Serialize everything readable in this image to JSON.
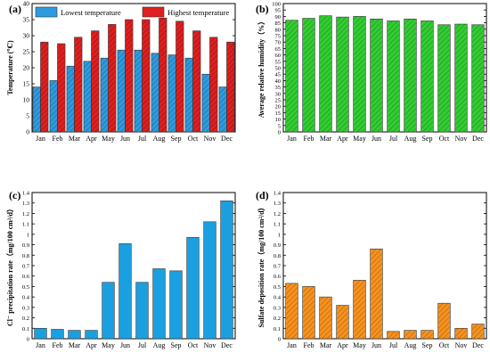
{
  "chart_data": [
    {
      "type": "bar",
      "panel": "(a)",
      "ylabel": "Temperature (℃)",
      "categories": [
        "Jan",
        "Feb",
        "Mar",
        "Apr",
        "May",
        "Jun",
        "Jul",
        "Aug",
        "Sep",
        "Oct",
        "Nov",
        "Dec"
      ],
      "series": [
        {
          "name": "Lowest temperature",
          "values": [
            14,
            16,
            20.5,
            22,
            23,
            25.5,
            25.5,
            24.5,
            24,
            23,
            18,
            14
          ],
          "color": "#2e9be0"
        },
        {
          "name": "Highest temperature",
          "values": [
            28,
            27.5,
            29.5,
            31.5,
            33.5,
            35,
            35,
            35.5,
            34.5,
            31.5,
            29.5,
            28
          ],
          "color": "#e01f1f"
        }
      ],
      "ylim": [
        0,
        40
      ],
      "yticks": [
        0,
        5,
        10,
        15,
        20,
        25,
        30,
        35,
        40
      ],
      "legend": "top-left",
      "hatched": true
    },
    {
      "type": "bar",
      "panel": "(b)",
      "ylabel": "Average relative humidity（%）",
      "categories": [
        "Jan",
        "Feb",
        "Mar",
        "Apr",
        "May",
        "Jun",
        "Jul",
        "Aug",
        "Sep",
        "Oct",
        "Nov",
        "Dec"
      ],
      "series": [
        {
          "values": [
            87,
            88.5,
            90.5,
            89.5,
            90,
            88,
            86.5,
            88,
            86.5,
            83.5,
            84,
            83.5
          ],
          "color": "#33cc33"
        }
      ],
      "ylim": [
        0,
        100
      ],
      "yticks": [
        0,
        5,
        10,
        15,
        20,
        25,
        30,
        35,
        40,
        45,
        50,
        55,
        60,
        65,
        70,
        75,
        80,
        85,
        90,
        95,
        100
      ],
      "hatched": true
    },
    {
      "type": "bar",
      "panel": "(c)",
      "ylabel": "Cl⁻ precipitation rate（mg/100 cm²/d）",
      "categories": [
        "Jan",
        "Feb",
        "Mar",
        "Apr",
        "May",
        "Jun",
        "Jul",
        "Aug",
        "Sep",
        "Oct",
        "Nov",
        "Dec"
      ],
      "series": [
        {
          "values": [
            0.1,
            0.09,
            0.08,
            0.08,
            0.54,
            0.91,
            0.54,
            0.67,
            0.65,
            0.97,
            1.12,
            1.32
          ],
          "color": "#1aa0e0"
        }
      ],
      "ylim": [
        0,
        1.4
      ],
      "yticks": [
        0,
        0.1,
        0.2,
        0.3,
        0.4,
        0.5,
        0.6,
        0.7,
        0.8,
        0.9,
        1.0,
        1.1,
        1.2,
        1.3,
        1.4
      ],
      "hatched": false
    },
    {
      "type": "bar",
      "panel": "(d)",
      "ylabel": "Sulfate deposition rate（mg/100 cm²/d）",
      "categories": [
        "Jan",
        "Feb",
        "Mar",
        "Apr",
        "May",
        "Jun",
        "Jul",
        "Aug",
        "Sep",
        "Oct",
        "Nov",
        "Dec"
      ],
      "series": [
        {
          "values": [
            0.53,
            0.5,
            0.4,
            0.32,
            0.56,
            0.86,
            0.07,
            0.08,
            0.08,
            0.34,
            0.1,
            0.14
          ],
          "color": "#f5921f"
        }
      ],
      "ylim": [
        0,
        1.4
      ],
      "yticks": [
        0,
        0.1,
        0.2,
        0.3,
        0.4,
        0.5,
        0.6,
        0.7,
        0.8,
        0.9,
        1.0,
        1.1,
        1.2,
        1.3,
        1.4
      ],
      "hatched": true
    }
  ]
}
